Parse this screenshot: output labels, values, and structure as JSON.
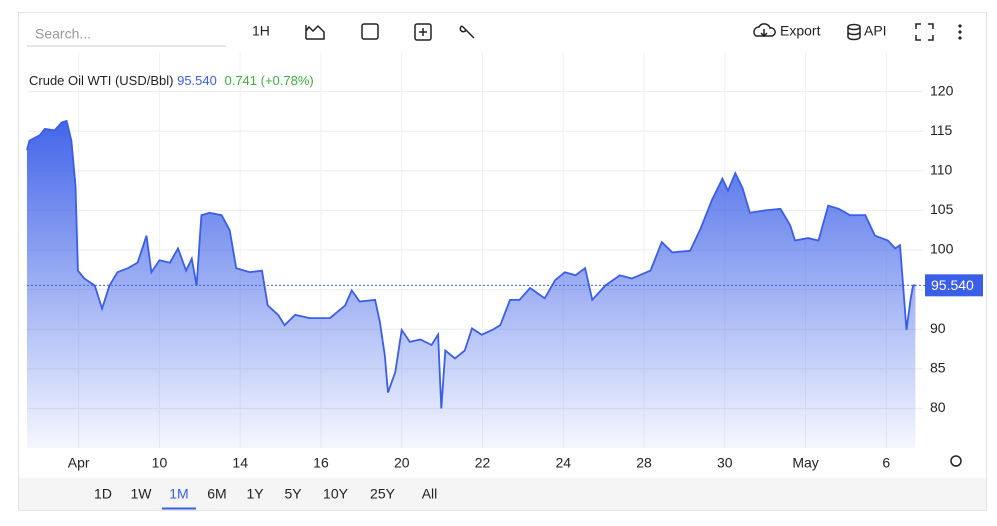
{
  "toolbar": {
    "search_placeholder": "Search...",
    "interval": "1H",
    "export": "Export",
    "api": "API"
  },
  "chart_data": {
    "type": "line",
    "title": "Crude Oil WTI (USD/Bbl)",
    "price_label": "95.540",
    "change_label": "0.741 (+0.78%)",
    "series": [
      {
        "name": "Crude Oil WTI",
        "color": "#3a5ee8",
        "x": [
          -0.64,
          -0.61,
          -0.48,
          -0.42,
          -0.3,
          -0.21,
          -0.15,
          -0.09,
          -0.04,
          -0.01,
          0.07,
          0.2,
          0.29,
          0.38,
          0.48,
          0.61,
          0.73,
          0.84,
          0.9,
          1.0,
          1.13,
          1.23,
          1.33,
          1.4,
          1.46,
          1.52,
          1.62,
          1.77,
          1.87,
          1.95,
          2.12,
          2.27,
          2.34,
          2.47,
          2.55,
          2.68,
          2.86,
          3.11,
          3.3,
          3.38,
          3.48,
          3.67,
          3.73,
          3.79,
          3.83,
          3.92,
          4.0,
          4.1,
          4.23,
          4.37,
          4.45,
          4.49,
          4.54,
          4.66,
          4.78,
          4.87,
          4.99,
          5.12,
          5.22,
          5.34,
          5.46,
          5.59,
          5.77,
          5.9,
          6.02,
          6.15,
          6.27,
          6.36,
          6.52,
          6.7,
          6.85,
          7.08,
          7.22,
          7.35,
          7.57,
          7.7,
          7.84,
          7.97,
          8.04,
          8.13,
          8.22,
          8.31,
          8.5,
          8.69,
          8.81,
          8.87,
          9.03,
          9.16,
          9.28,
          9.41,
          9.55,
          9.74,
          9.86,
          10.02,
          10.11,
          10.17,
          10.25,
          10.3,
          10.33,
          10.36
        ],
        "values": [
          112.6,
          113.8,
          114.5,
          115.3,
          115.1,
          116.1,
          116.3,
          113.8,
          108.1,
          97.4,
          96.4,
          95.5,
          92.6,
          95.5,
          97.2,
          97.7,
          98.4,
          101.8,
          97.2,
          98.7,
          98.4,
          100.2,
          97.4,
          98.9,
          95.5,
          104.4,
          104.7,
          104.4,
          102.5,
          97.7,
          97.2,
          97.4,
          93.0,
          91.8,
          90.5,
          91.8,
          91.4,
          91.4,
          93.0,
          94.9,
          93.5,
          93.7,
          90.9,
          86.7,
          82.0,
          84.6,
          89.9,
          88.4,
          88.7,
          88.0,
          89.3,
          80.0,
          87.3,
          86.3,
          87.3,
          90.1,
          89.3,
          89.9,
          90.5,
          93.7,
          93.7,
          95.2,
          93.9,
          96.2,
          97.2,
          96.8,
          97.7,
          93.7,
          95.5,
          96.8,
          96.4,
          97.4,
          101.0,
          99.7,
          99.9,
          102.7,
          106.3,
          109.0,
          107.5,
          109.7,
          107.8,
          104.7,
          105.0,
          105.2,
          103.1,
          101.2,
          101.5,
          101.2,
          105.6,
          105.2,
          104.4,
          104.4,
          101.8,
          101.2,
          100.2,
          100.6,
          89.9,
          93.7,
          95.5,
          95.54
        ]
      }
    ],
    "xlim": [
      -0.64,
      10.38
    ],
    "xticks": [
      {
        "value": 0,
        "label": "Apr"
      },
      {
        "value": 1,
        "label": "10"
      },
      {
        "value": 2,
        "label": "14"
      },
      {
        "value": 3,
        "label": "16"
      },
      {
        "value": 4,
        "label": "20"
      },
      {
        "value": 5,
        "label": "22"
      },
      {
        "value": 6,
        "label": "24"
      },
      {
        "value": 7,
        "label": "28"
      },
      {
        "value": 8,
        "label": "30"
      },
      {
        "value": 9,
        "label": "May"
      },
      {
        "value": 10,
        "label": "6"
      }
    ],
    "ylim": [
      75,
      125
    ],
    "yticks": [
      80,
      85,
      90,
      95,
      100,
      105,
      110,
      115,
      120
    ],
    "grid": true
  },
  "ranges": [
    "1D",
    "1W",
    "1M",
    "6M",
    "1Y",
    "5Y",
    "10Y",
    "25Y",
    "All"
  ],
  "selected_range": "1M"
}
